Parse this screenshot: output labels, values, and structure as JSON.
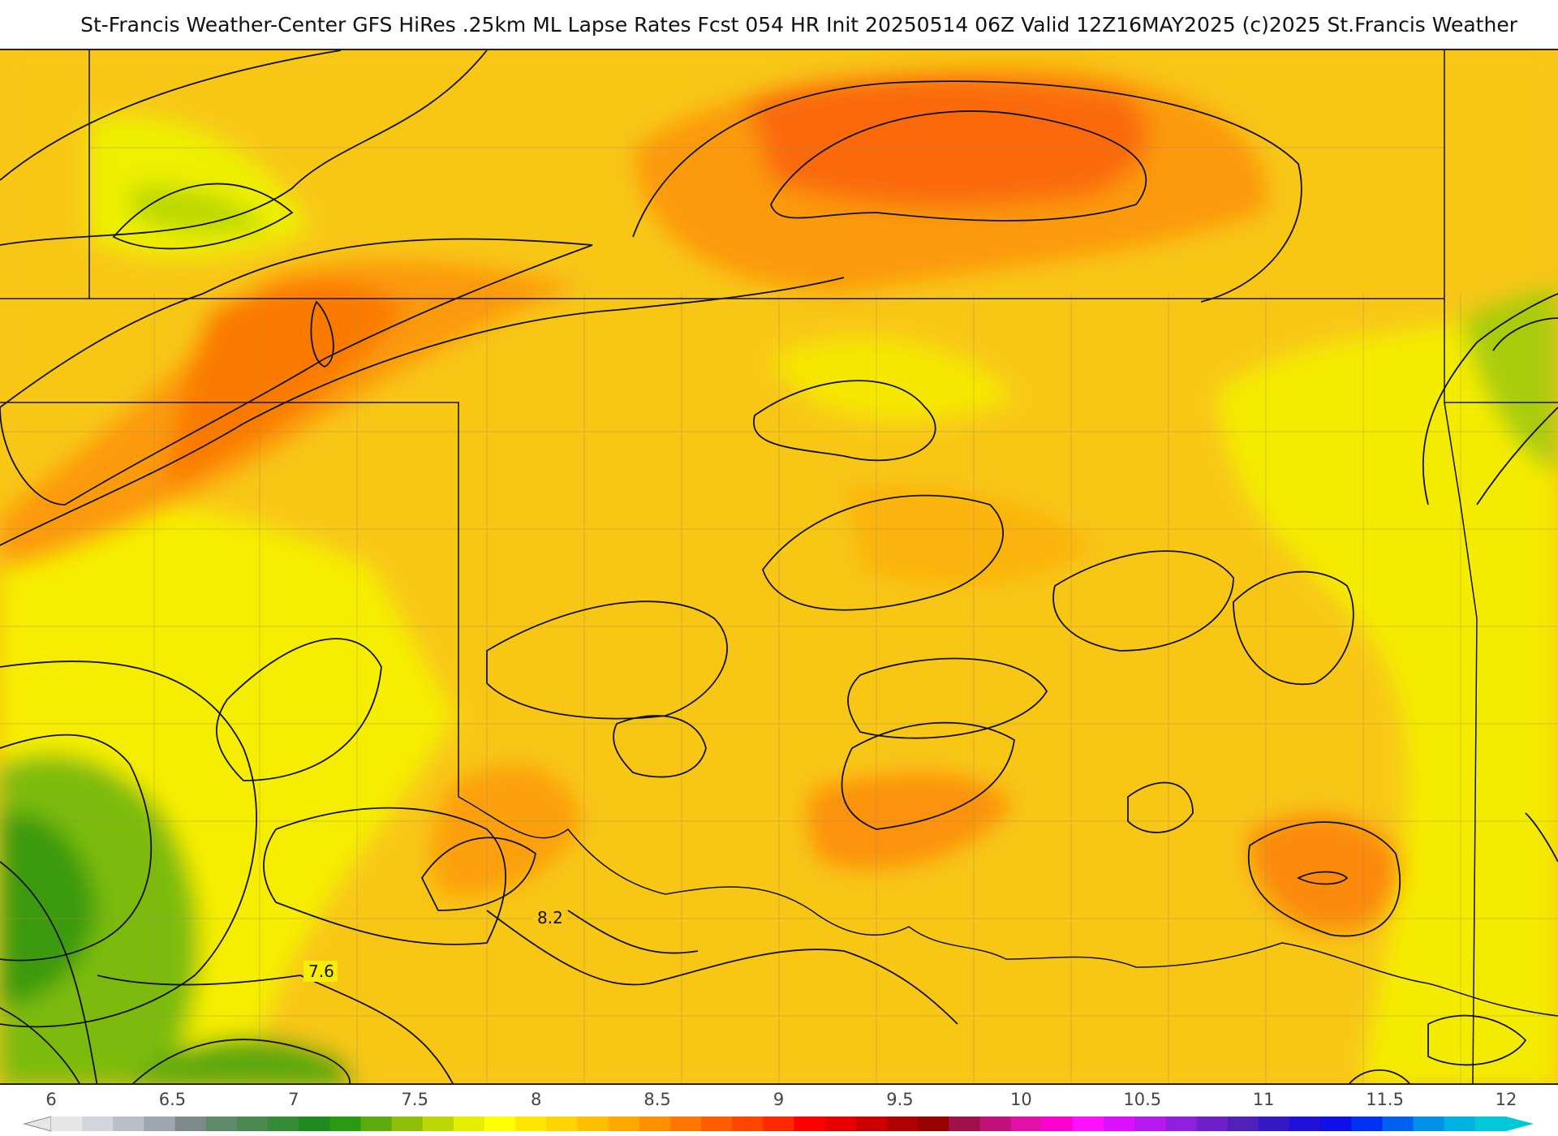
{
  "header": {
    "title": "St-Francis Weather-Center GFS HiRes .25km ML Lapse Rates  Fcst 054 HR Init 20250514 06Z  Valid 12Z16MAY2025    (c)2025 St.Francis Weather"
  },
  "map": {
    "contour_labels": [
      {
        "id": "label-8-2",
        "text": "8.2"
      },
      {
        "id": "label-7-6",
        "text": "7.6"
      }
    ]
  },
  "legend": {
    "ticks": [
      "6",
      "6.5",
      "7",
      "7.5",
      "8",
      "8.5",
      "9",
      "9.5",
      "10",
      "10.5",
      "11",
      "11.5",
      "12"
    ],
    "colors": [
      "#e6e6e6",
      "#d2d6dc",
      "#b8bec8",
      "#9ea6b2",
      "#7c8a8a",
      "#5f8a6a",
      "#4a8a50",
      "#358a35",
      "#1f8a1f",
      "#2a9a12",
      "#5aaa10",
      "#8ec00a",
      "#bcd806",
      "#e8ee00",
      "#ffff00",
      "#ffe600",
      "#ffd400",
      "#ffbf00",
      "#ffa800",
      "#ff9000",
      "#ff7700",
      "#ff5e00",
      "#ff4400",
      "#ff2a00",
      "#ff0000",
      "#e80000",
      "#cc0000",
      "#b00000",
      "#990000",
      "#a0104a",
      "#c0107a",
      "#e010a8",
      "#ff00d0",
      "#ff10ff",
      "#dc10ff",
      "#b818f0",
      "#9020e0",
      "#7020c8",
      "#5020b8",
      "#3418c8",
      "#2010d8",
      "#1010e8",
      "#0030f0",
      "#0060f0",
      "#0090e8",
      "#00b0e0",
      "#00c8d8"
    ]
  }
}
